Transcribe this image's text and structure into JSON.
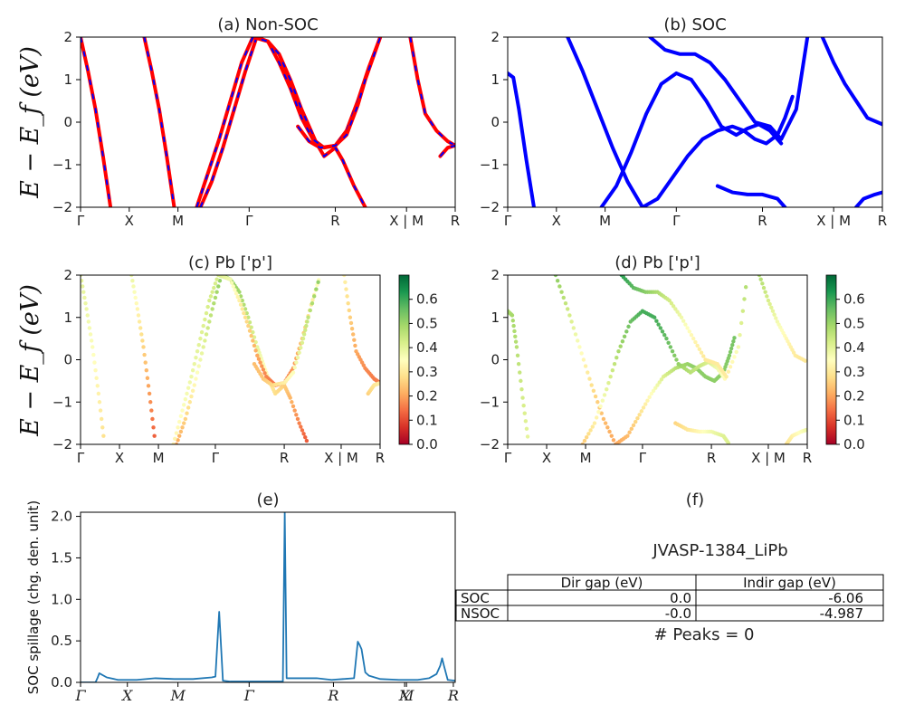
{
  "chart_data": [
    {
      "panel": "a",
      "type": "line",
      "title": "(a) Non-SOC",
      "ylabel": "E − E_f (eV)",
      "ylim": [
        -2,
        2
      ],
      "yticks": [
        -2,
        -1,
        0,
        1,
        2
      ],
      "kpath_labels": [
        "Γ",
        "X",
        "M",
        "Γ",
        "R",
        "X | M",
        "R"
      ],
      "kpath_positions": [
        0,
        0.13,
        0.26,
        0.45,
        0.68,
        0.87,
        1.0
      ],
      "series": [
        {
          "color": "#ff0000",
          "dash": "#0000ff",
          "x": [
            0,
            0.02,
            0.04,
            0.06,
            0.08
          ],
          "y": [
            2.0,
            1.2,
            0.3,
            -0.8,
            -2.0
          ]
        },
        {
          "color": "#ff0000",
          "dash": "#0000ff",
          "x": [
            0.17,
            0.19,
            0.21,
            0.23,
            0.25
          ],
          "y": [
            2.0,
            1.2,
            0.3,
            -0.8,
            -2.0
          ]
        },
        {
          "color": "#ff0000",
          "dash": "#0000ff",
          "x": [
            0.32,
            0.35,
            0.38,
            0.41,
            0.44,
            0.47,
            0.5,
            0.53,
            0.56,
            0.59,
            0.61,
            0.63,
            0.65,
            0.68,
            0.7,
            0.73,
            0.76
          ],
          "y": [
            -2.0,
            -1.4,
            -0.6,
            0.3,
            1.2,
            2.0,
            1.9,
            1.6,
            1.0,
            0.3,
            -0.1,
            -0.5,
            -0.8,
            -0.6,
            -0.9,
            -1.5,
            -2.0
          ]
        },
        {
          "color": "#ff0000",
          "dash": "#0000ff",
          "x": [
            0.31,
            0.34,
            0.37,
            0.4,
            0.43,
            0.46,
            0.5,
            0.53,
            0.56,
            0.59,
            0.62,
            0.65,
            0.68,
            0.71,
            0.74,
            0.77,
            0.8
          ],
          "y": [
            -2.0,
            -1.2,
            -0.4,
            0.5,
            1.4,
            2.0,
            1.9,
            1.4,
            0.8,
            0.1,
            -0.4,
            -0.6,
            -0.55,
            -0.2,
            0.5,
            1.3,
            2.0
          ]
        },
        {
          "color": "#ff0000",
          "dash": "#0000ff",
          "x": [
            0.58,
            0.61,
            0.64,
            0.68,
            0.71,
            0.74,
            0.76,
            0.8
          ],
          "y": [
            -0.1,
            -0.45,
            -0.6,
            -0.55,
            -0.3,
            0.4,
            1.0,
            2.0
          ]
        },
        {
          "color": "#ff0000",
          "dash": "#0000ff",
          "x": [
            0.88,
            0.9,
            0.92,
            0.95,
            0.98,
            1.0
          ],
          "y": [
            2.0,
            1.0,
            0.2,
            -0.2,
            -0.45,
            -0.55
          ]
        },
        {
          "color": "#ff0000",
          "dash": "#0000ff",
          "x": [
            0.96,
            0.98,
            1.0
          ],
          "y": [
            -0.8,
            -0.6,
            -0.55
          ]
        }
      ]
    },
    {
      "panel": "b",
      "type": "line",
      "title": "(b) SOC",
      "ylim": [
        -2,
        2
      ],
      "yticks": [
        -2,
        -1,
        0,
        1,
        2
      ],
      "kpath_labels": [
        "Γ",
        "X",
        "M",
        "Γ",
        "R",
        "X | M",
        "R"
      ],
      "kpath_positions": [
        0,
        0.13,
        0.26,
        0.45,
        0.68,
        0.87,
        1.0
      ],
      "series": [
        {
          "color": "#0000ff",
          "x": [
            0,
            0.015,
            0.03,
            0.05,
            0.07
          ],
          "y": [
            1.15,
            1.05,
            0.3,
            -0.9,
            -2.0
          ]
        },
        {
          "color": "#0000ff",
          "x": [
            0.16,
            0.2,
            0.24,
            0.28,
            0.32,
            0.36,
            0.4,
            0.44,
            0.48,
            0.52,
            0.56,
            0.6,
            0.63,
            0.66,
            0.69,
            0.72,
            0.74,
            0.76
          ],
          "y": [
            2.0,
            1.2,
            0.3,
            -0.6,
            -1.4,
            -2.0,
            -1.8,
            -1.3,
            -0.8,
            -0.4,
            -0.2,
            -0.1,
            -0.2,
            -0.4,
            -0.5,
            -0.3,
            0.1,
            0.6
          ]
        },
        {
          "color": "#0000ff",
          "x": [
            0.25,
            0.29,
            0.33,
            0.37,
            0.41,
            0.45,
            0.49,
            0.53,
            0.57,
            0.61,
            0.64,
            0.67,
            0.7,
            0.73
          ],
          "y": [
            -2.0,
            -1.5,
            -0.7,
            0.2,
            0.9,
            1.15,
            1.0,
            0.5,
            -0.1,
            -0.3,
            -0.15,
            -0.05,
            -0.2,
            -0.5
          ]
        },
        {
          "color": "#0000ff",
          "x": [
            0.38,
            0.42,
            0.46,
            0.5,
            0.54,
            0.58,
            0.62,
            0.66,
            0.7,
            0.73,
            0.77,
            0.8
          ],
          "y": [
            2.0,
            1.7,
            1.6,
            1.6,
            1.4,
            1.0,
            0.5,
            0.0,
            -0.1,
            -0.4,
            0.3,
            2.0
          ]
        },
        {
          "color": "#0000ff",
          "x": [
            0.56,
            0.6,
            0.64,
            0.68,
            0.72,
            0.74
          ],
          "y": [
            -1.5,
            -1.65,
            -1.7,
            -1.7,
            -1.8,
            -2.0
          ]
        },
        {
          "color": "#0000ff",
          "x": [
            0.84,
            0.87,
            0.9,
            0.93,
            0.96,
            1.0
          ],
          "y": [
            2.0,
            1.4,
            0.9,
            0.5,
            0.1,
            -0.05
          ]
        },
        {
          "color": "#0000ff",
          "x": [
            0.93,
            0.95,
            0.98,
            1.0
          ],
          "y": [
            -2.0,
            -1.8,
            -1.7,
            -1.65
          ]
        }
      ]
    },
    {
      "panel": "c",
      "type": "scatter",
      "title": "(c)  Pb ['p']",
      "ylabel": "E − E_f (eV)",
      "ylim": [
        -2,
        2
      ],
      "yticks": [
        -2,
        -1,
        0,
        1,
        2
      ],
      "kpath_labels": [
        "Γ",
        "X",
        "M",
        "Γ",
        "R",
        "X | M",
        "R"
      ],
      "kpath_positions": [
        0,
        0.13,
        0.26,
        0.45,
        0.68,
        0.87,
        1.0
      ],
      "colorbar": {
        "min": 0.0,
        "max": 0.6,
        "ticks": [
          "0.0",
          "0.1",
          "0.2",
          "0.3",
          "0.4",
          "0.5",
          "0.6"
        ]
      }
    },
    {
      "panel": "d",
      "type": "scatter",
      "title": "(d) Pb ['p']",
      "ylim": [
        -2,
        2
      ],
      "yticks": [
        -2,
        -1,
        0,
        1,
        2
      ],
      "kpath_labels": [
        "Γ",
        "X",
        "M",
        "Γ",
        "R",
        "X | M",
        "R"
      ],
      "kpath_positions": [
        0,
        0.13,
        0.26,
        0.45,
        0.68,
        0.87,
        1.0
      ],
      "colorbar": {
        "min": 0.0,
        "max": 0.6,
        "ticks": [
          "0.0",
          "0.1",
          "0.2",
          "0.3",
          "0.4",
          "0.5",
          "0.6"
        ]
      }
    },
    {
      "panel": "e",
      "type": "line",
      "title": "(e)",
      "ylabel": "SOC spillage (chg. den. unit)",
      "ylim": [
        0,
        2.05
      ],
      "yticks": [
        "0.0",
        "0.5",
        "1.0",
        "1.5",
        "2.0"
      ],
      "kpath_labels": [
        "Γ",
        "X",
        "M",
        "Γ",
        "R",
        "X",
        "M",
        "R"
      ],
      "kpath_positions": [
        0,
        0.125,
        0.26,
        0.45,
        0.675,
        0.865,
        0.87,
        0.995
      ],
      "series": [
        {
          "color": "#1f77b4",
          "x": [
            0,
            0.04,
            0.045,
            0.05,
            0.07,
            0.1,
            0.15,
            0.2,
            0.25,
            0.3,
            0.35,
            0.36,
            0.37,
            0.38,
            0.4,
            0.45,
            0.48,
            0.54,
            0.545,
            0.55,
            0.6,
            0.63,
            0.67,
            0.7,
            0.73,
            0.74,
            0.745,
            0.75,
            0.76,
            0.77,
            0.8,
            0.85,
            0.9,
            0.93,
            0.95,
            0.96,
            0.965,
            0.97,
            0.98,
            1.0
          ],
          "y": [
            0.0,
            0.0,
            0.05,
            0.11,
            0.06,
            0.03,
            0.03,
            0.05,
            0.04,
            0.04,
            0.06,
            0.07,
            0.85,
            0.02,
            0.01,
            0.01,
            0.01,
            0.01,
            2.05,
            0.05,
            0.05,
            0.05,
            0.03,
            0.04,
            0.05,
            0.49,
            0.45,
            0.4,
            0.12,
            0.08,
            0.04,
            0.03,
            0.03,
            0.05,
            0.1,
            0.2,
            0.29,
            0.2,
            0.03,
            0.02
          ]
        }
      ]
    },
    {
      "panel": "f",
      "type": "table",
      "title": "(f)",
      "subtitle": "JVASP-1384_LiPb",
      "columns": [
        "Dir gap (eV)",
        "Indir gap (eV)"
      ],
      "rows": [
        {
          "label": "SOC",
          "values": [
            "0.0",
            "-6.06"
          ]
        },
        {
          "label": "NSOC",
          "values": [
            "-0.0",
            "-4.987"
          ]
        }
      ],
      "footer": "# Peaks = 0"
    }
  ]
}
